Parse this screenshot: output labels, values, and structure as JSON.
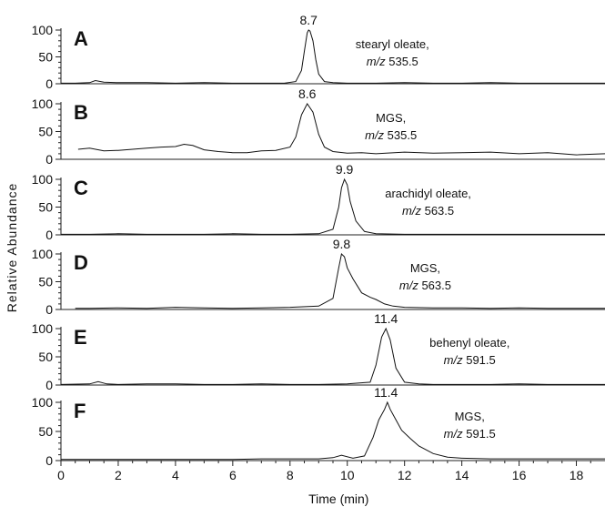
{
  "chart_data": {
    "type": "line",
    "xlabel": "Time (min)",
    "ylabel": "Relative Abundance",
    "xlim": [
      0,
      19
    ],
    "ylim": [
      0,
      100
    ],
    "x_ticks": [
      0,
      2,
      4,
      6,
      8,
      10,
      12,
      14,
      16,
      18
    ],
    "y_ticks": [
      0,
      50,
      100
    ],
    "grid": false,
    "panels": [
      {
        "letter": "A",
        "peak_label": "8.7",
        "peak_time": 8.65,
        "annotation_name": "stearyl oleate,",
        "annotation_mz_prefix": "m/z",
        "annotation_mz_value": "535.5",
        "x": [
          0.0,
          0.5,
          1.0,
          1.2,
          1.5,
          2.0,
          3.0,
          4.0,
          5.0,
          6.0,
          7.0,
          7.8,
          8.2,
          8.4,
          8.5,
          8.6,
          8.65,
          8.7,
          8.8,
          8.9,
          9.0,
          9.2,
          9.5,
          10.0,
          11.0,
          12.0,
          13.0,
          14.0,
          15.0,
          16.0,
          17.0,
          18.0,
          19.0
        ],
        "y": [
          1,
          1,
          2,
          6,
          3,
          2,
          2,
          1,
          2,
          1,
          1,
          1,
          4,
          25,
          60,
          95,
          100,
          98,
          80,
          45,
          18,
          4,
          2,
          1,
          1,
          2,
          1,
          1,
          2,
          1,
          1,
          1,
          1
        ]
      },
      {
        "letter": "B",
        "peak_label": "8.6",
        "peak_time": 8.6,
        "annotation_name": "MGS,",
        "annotation_mz_prefix": "m/z",
        "annotation_mz_value": "535.5",
        "x": [
          0.6,
          1.0,
          1.5,
          2.0,
          2.5,
          3.0,
          3.5,
          4.0,
          4.3,
          4.6,
          5.0,
          5.5,
          6.0,
          6.5,
          7.0,
          7.5,
          8.0,
          8.2,
          8.4,
          8.6,
          8.8,
          9.0,
          9.2,
          9.5,
          10.0,
          10.5,
          11.0,
          12.0,
          13.0,
          14.0,
          15.0,
          16.0,
          17.0,
          18.0,
          19.0
        ],
        "y": [
          18,
          20,
          15,
          16,
          18,
          20,
          22,
          23,
          27,
          25,
          17,
          14,
          12,
          12,
          15,
          16,
          22,
          40,
          80,
          100,
          85,
          45,
          22,
          14,
          11,
          12,
          10,
          13,
          11,
          12,
          13,
          10,
          12,
          8,
          10
        ]
      },
      {
        "letter": "C",
        "peak_label": "9.9",
        "peak_time": 9.9,
        "annotation_name": "arachidyl oleate,",
        "annotation_mz_prefix": "m/z",
        "annotation_mz_value": "563.5",
        "x": [
          0.0,
          1.0,
          2.0,
          3.0,
          4.0,
          5.0,
          6.0,
          7.0,
          8.0,
          9.0,
          9.5,
          9.7,
          9.8,
          9.9,
          10.0,
          10.1,
          10.3,
          10.6,
          11.0,
          12.0,
          13.0,
          14.0,
          15.0,
          16.0,
          17.0,
          18.0,
          19.0
        ],
        "y": [
          1,
          1,
          2,
          1,
          1,
          1,
          2,
          1,
          1,
          2,
          10,
          50,
          85,
          100,
          90,
          60,
          25,
          6,
          2,
          1,
          1,
          1,
          1,
          1,
          1,
          1,
          1
        ]
      },
      {
        "letter": "D",
        "peak_label": "9.8",
        "peak_time": 9.8,
        "annotation_name": "MGS,",
        "annotation_mz_prefix": "m/z",
        "annotation_mz_value": "563.5",
        "x": [
          0.5,
          1.0,
          2.0,
          3.0,
          4.0,
          5.0,
          6.0,
          7.0,
          8.0,
          9.0,
          9.5,
          9.7,
          9.8,
          9.9,
          10.0,
          10.2,
          10.5,
          10.8,
          11.0,
          11.3,
          11.6,
          12.0,
          13.0,
          14.0,
          15.0,
          16.0,
          17.0,
          18.0,
          19.0
        ],
        "y": [
          2,
          2,
          3,
          2,
          4,
          3,
          2,
          3,
          4,
          6,
          20,
          75,
          100,
          95,
          75,
          55,
          30,
          22,
          18,
          10,
          6,
          4,
          3,
          3,
          2,
          3,
          2,
          2,
          2
        ]
      },
      {
        "letter": "E",
        "peak_label": "11.4",
        "peak_time": 11.35,
        "annotation_name": "behenyl oleate,",
        "annotation_mz_prefix": "m/z",
        "annotation_mz_value": "591.5",
        "x": [
          0.0,
          1.0,
          1.3,
          1.6,
          2.0,
          3.0,
          4.0,
          5.0,
          6.0,
          7.0,
          8.0,
          9.0,
          10.0,
          10.8,
          11.0,
          11.2,
          11.35,
          11.5,
          11.7,
          12.0,
          12.5,
          13.0,
          14.0,
          15.0,
          16.0,
          17.0,
          18.0,
          19.0
        ],
        "y": [
          1,
          2,
          6,
          2,
          1,
          2,
          2,
          1,
          1,
          2,
          1,
          1,
          2,
          5,
          35,
          85,
          100,
          80,
          30,
          5,
          2,
          1,
          1,
          1,
          2,
          1,
          1,
          1
        ]
      },
      {
        "letter": "F",
        "peak_label": "11.4",
        "peak_time": 11.35,
        "annotation_name": "MGS,",
        "annotation_mz_prefix": "m/z",
        "annotation_mz_value": "591.5",
        "x": [
          0.0,
          1.0,
          2.0,
          3.0,
          4.0,
          5.0,
          6.0,
          7.0,
          8.0,
          9.0,
          9.5,
          9.8,
          10.2,
          10.6,
          10.9,
          11.1,
          11.3,
          11.4,
          11.5,
          11.7,
          11.9,
          12.2,
          12.5,
          13.0,
          13.5,
          14.0,
          15.0,
          16.0,
          17.0,
          18.0,
          19.0
        ],
        "y": [
          2,
          2,
          2,
          2,
          2,
          2,
          2,
          3,
          3,
          3,
          5,
          9,
          4,
          8,
          40,
          70,
          88,
          100,
          88,
          70,
          52,
          38,
          25,
          12,
          6,
          4,
          3,
          3,
          3,
          3,
          3
        ]
      }
    ]
  }
}
